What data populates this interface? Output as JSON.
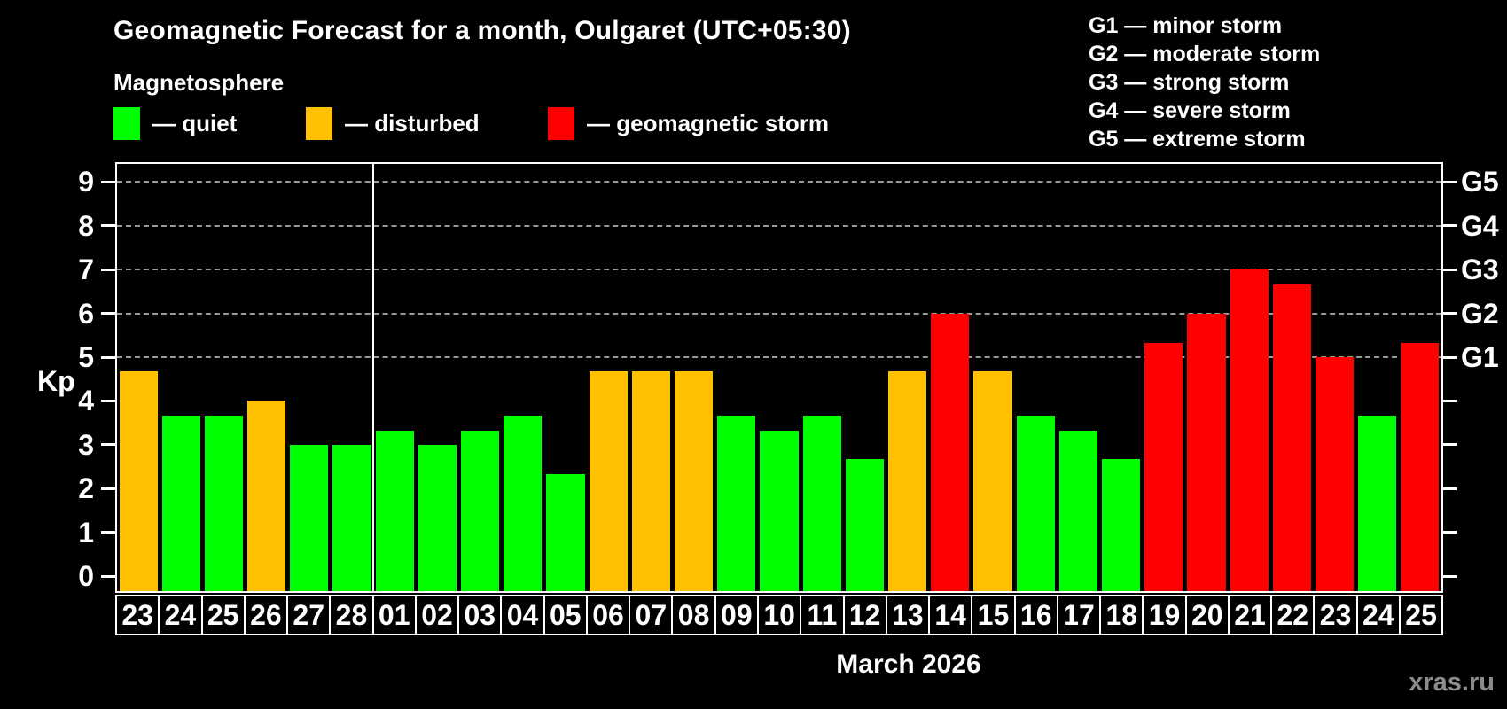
{
  "header": {
    "title": "Geomagnetic Forecast for a month, Oulgaret (UTC+05:30)",
    "subtitle": "Magnetosphere"
  },
  "legend": {
    "items": [
      {
        "name": "quiet",
        "label": "— quiet",
        "color": "#00ff00"
      },
      {
        "name": "disturbed",
        "label": "— disturbed",
        "color": "#ffc000"
      },
      {
        "name": "storm",
        "label": "— geomagnetic storm",
        "color": "#ff0000"
      }
    ]
  },
  "g_legend": {
    "items": [
      "G1 — minor storm",
      "G2 — moderate storm",
      "G3 — strong storm",
      "G4 — severe storm",
      "G5 — extreme storm"
    ]
  },
  "watermark": "xras.ru",
  "chart_data": {
    "type": "bar",
    "title": "Geomagnetic Forecast for a month, Oulgaret (UTC+05:30)",
    "ylabel": "Kp",
    "xlabel": "March 2026",
    "ylim": [
      0,
      9.5
    ],
    "yticks": [
      0,
      1,
      2,
      3,
      4,
      5,
      6,
      7,
      8,
      9
    ],
    "gridlines_kp": [
      5,
      6,
      7,
      8,
      9
    ],
    "grid": "dashed",
    "right_axis_labels": [
      {
        "kp": 5,
        "text": "G1"
      },
      {
        "kp": 6,
        "text": "G2"
      },
      {
        "kp": 7,
        "text": "G3"
      },
      {
        "kp": 8,
        "text": "G4"
      },
      {
        "kp": 9,
        "text": "G5"
      }
    ],
    "status_colors": {
      "quiet": "#00ff00",
      "disturbed": "#ffc000",
      "storm": "#ff0000"
    },
    "month_separator_after_index": 5,
    "bars": [
      {
        "day": "23",
        "kp": 4.67,
        "status": "disturbed"
      },
      {
        "day": "24",
        "kp": 3.67,
        "status": "quiet"
      },
      {
        "day": "25",
        "kp": 3.67,
        "status": "quiet"
      },
      {
        "day": "26",
        "kp": 4.0,
        "status": "disturbed"
      },
      {
        "day": "27",
        "kp": 3.0,
        "status": "quiet"
      },
      {
        "day": "28",
        "kp": 3.0,
        "status": "quiet"
      },
      {
        "day": "01",
        "kp": 3.33,
        "status": "quiet"
      },
      {
        "day": "02",
        "kp": 3.0,
        "status": "quiet"
      },
      {
        "day": "03",
        "kp": 3.33,
        "status": "quiet"
      },
      {
        "day": "04",
        "kp": 3.67,
        "status": "quiet"
      },
      {
        "day": "05",
        "kp": 2.33,
        "status": "quiet"
      },
      {
        "day": "06",
        "kp": 4.67,
        "status": "disturbed"
      },
      {
        "day": "07",
        "kp": 4.67,
        "status": "disturbed"
      },
      {
        "day": "08",
        "kp": 4.67,
        "status": "disturbed"
      },
      {
        "day": "09",
        "kp": 3.67,
        "status": "quiet"
      },
      {
        "day": "10",
        "kp": 3.33,
        "status": "quiet"
      },
      {
        "day": "11",
        "kp": 3.67,
        "status": "quiet"
      },
      {
        "day": "12",
        "kp": 2.67,
        "status": "quiet"
      },
      {
        "day": "13",
        "kp": 4.67,
        "status": "disturbed"
      },
      {
        "day": "14",
        "kp": 6.0,
        "status": "storm"
      },
      {
        "day": "15",
        "kp": 4.67,
        "status": "disturbed"
      },
      {
        "day": "16",
        "kp": 3.67,
        "status": "quiet"
      },
      {
        "day": "17",
        "kp": 3.33,
        "status": "quiet"
      },
      {
        "day": "18",
        "kp": 2.67,
        "status": "quiet"
      },
      {
        "day": "19",
        "kp": 5.33,
        "status": "storm"
      },
      {
        "day": "20",
        "kp": 6.0,
        "status": "storm"
      },
      {
        "day": "21",
        "kp": 7.0,
        "status": "storm"
      },
      {
        "day": "22",
        "kp": 6.67,
        "status": "storm"
      },
      {
        "day": "23",
        "kp": 5.0,
        "status": "storm"
      },
      {
        "day": "24",
        "kp": 3.67,
        "status": "quiet"
      },
      {
        "day": "25",
        "kp": 5.33,
        "status": "storm"
      }
    ]
  }
}
